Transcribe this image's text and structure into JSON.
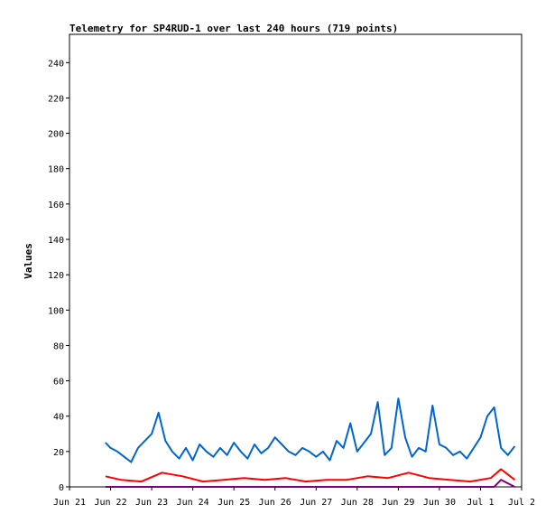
{
  "chart_data": {
    "type": "line",
    "title": "Telemetry for SP4RUD-1 over last 240 hours (719 points)",
    "xlabel": "",
    "ylabel": "Values",
    "ylim": [
      0,
      256
    ],
    "yticks": [
      0,
      20,
      40,
      60,
      80,
      100,
      120,
      140,
      160,
      180,
      200,
      220,
      240
    ],
    "x_tick_labels": [
      "Jun 21",
      "Jun 22",
      "Jun 23",
      "Jun 24",
      "Jun 25",
      "Jun 26",
      "Jun 27",
      "Jun 28",
      "Jun 29",
      "Jun 30",
      "Jul 1",
      "Jul 2"
    ],
    "xlim": [
      "Jun 21",
      "Jul 2"
    ],
    "x_unit": "days",
    "grid": false,
    "legend": "none",
    "series": [
      {
        "color": "#0066cc",
        "x": [
          "Jun 21 21:00",
          "Jun 22 00:00",
          "Jun 22 04:00",
          "Jun 22 08:00",
          "Jun 22 12:00",
          "Jun 22 16:00",
          "Jun 22 20:00",
          "Jun 23 00:00",
          "Jun 23 04:00",
          "Jun 23 08:00",
          "Jun 23 12:00",
          "Jun 23 16:00",
          "Jun 23 20:00",
          "Jun 24 00:00",
          "Jun 24 04:00",
          "Jun 24 08:00",
          "Jun 24 12:00",
          "Jun 24 16:00",
          "Jun 24 20:00",
          "Jun 25 00:00",
          "Jun 25 04:00",
          "Jun 25 08:00",
          "Jun 25 12:00",
          "Jun 25 16:00",
          "Jun 25 20:00",
          "Jun 26 00:00",
          "Jun 26 04:00",
          "Jun 26 08:00",
          "Jun 26 12:00",
          "Jun 26 16:00",
          "Jun 26 20:00",
          "Jun 27 00:00",
          "Jun 27 04:00",
          "Jun 27 08:00",
          "Jun 27 12:00",
          "Jun 27 16:00",
          "Jun 27 20:00",
          "Jun 28 00:00",
          "Jun 28 04:00",
          "Jun 28 08:00",
          "Jun 28 12:00",
          "Jun 28 16:00",
          "Jun 28 20:00",
          "Jun 29 00:00",
          "Jun 29 04:00",
          "Jun 29 08:00",
          "Jun 29 12:00",
          "Jun 29 16:00",
          "Jun 29 20:00",
          "Jun 30 00:00",
          "Jun 30 04:00",
          "Jun 30 08:00",
          "Jun 30 12:00",
          "Jun 30 16:00",
          "Jun 30 20:00",
          "Jul 1 00:00",
          "Jul 1 04:00",
          "Jul 1 08:00",
          "Jul 1 12:00",
          "Jul 1 16:00",
          "Jul 1 20:00"
        ],
        "values": [
          25,
          22,
          20,
          17,
          14,
          22,
          26,
          30,
          42,
          26,
          20,
          16,
          22,
          15,
          24,
          20,
          17,
          22,
          18,
          25,
          20,
          16,
          24,
          19,
          22,
          28,
          24,
          20,
          18,
          22,
          20,
          17,
          20,
          15,
          26,
          22,
          36,
          20,
          25,
          30,
          48,
          18,
          22,
          50,
          28,
          17,
          22,
          20,
          46,
          24,
          22,
          18,
          20,
          16,
          22,
          28,
          40,
          45,
          22,
          18,
          23
        ]
      },
      {
        "color": "#ff0000",
        "x": [
          "Jun 21 21:00",
          "Jun 22 06:00",
          "Jun 22 18:00",
          "Jun 23 06:00",
          "Jun 23 18:00",
          "Jun 24 06:00",
          "Jun 24 18:00",
          "Jun 25 06:00",
          "Jun 25 18:00",
          "Jun 26 06:00",
          "Jun 26 18:00",
          "Jun 27 06:00",
          "Jun 27 18:00",
          "Jun 28 06:00",
          "Jun 28 18:00",
          "Jun 29 06:00",
          "Jun 29 18:00",
          "Jun 30 06:00",
          "Jun 30 18:00",
          "Jul 1 06:00",
          "Jul 1 12:00",
          "Jul 1 20:00"
        ],
        "values": [
          6,
          4,
          3,
          8,
          6,
          3,
          4,
          5,
          4,
          5,
          3,
          4,
          4,
          6,
          5,
          8,
          5,
          4,
          3,
          5,
          10,
          4
        ]
      },
      {
        "color": "#800080",
        "x": [
          "Jun 21 21:00",
          "Jun 23 00:00",
          "Jun 25 00:00",
          "Jun 27 00:00",
          "Jun 29 00:00",
          "Jul 1 00:00",
          "Jul 1 08:00",
          "Jul 1 12:00",
          "Jul 1 20:00"
        ],
        "values": [
          0,
          0,
          0,
          0,
          0,
          0,
          0,
          4,
          0
        ]
      }
    ]
  }
}
